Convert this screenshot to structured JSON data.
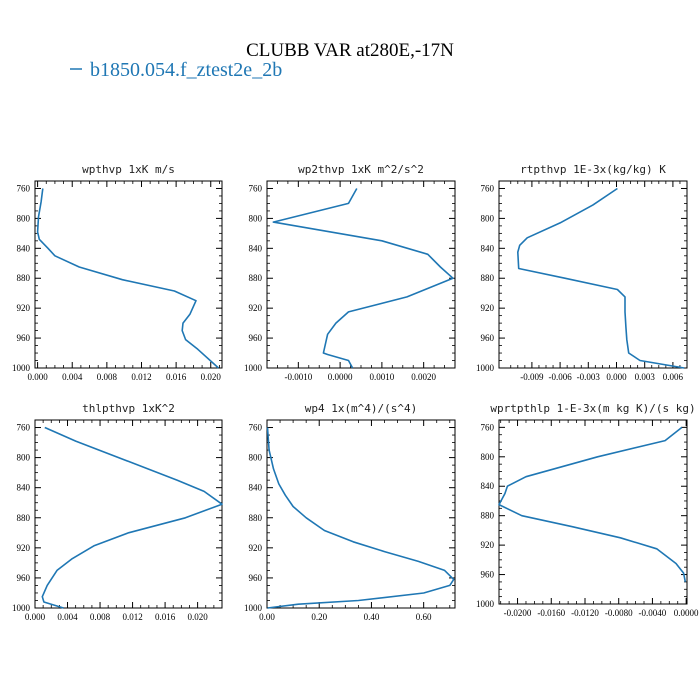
{
  "figure": {
    "title": "CLUBB VAR at280E,-17N",
    "legend_label": "b1850.054.f_ztest2e_2b",
    "line_color": "#1f77b4"
  },
  "chart_data": [
    {
      "type": "line",
      "title": "wpthvp  1xK m/s",
      "ylim": [
        1000,
        750
      ],
      "yticks": [
        760,
        800,
        840,
        880,
        920,
        960,
        1000
      ],
      "xlim": [
        -0.0003,
        0.0213
      ],
      "xticks": [
        0.0,
        0.004,
        0.008,
        0.012,
        0.016,
        0.02
      ],
      "xtick_labels": [
        "0.000",
        "0.004",
        "0.008",
        "0.012",
        "0.016",
        "0.020"
      ],
      "series": [
        {
          "x": [
            0.0006,
            0.0004,
            0.0001,
            0.0,
            0.0002,
            0.0012,
            0.002,
            0.0048,
            0.0098,
            0.0158,
            0.0183,
            0.0176,
            0.0168,
            0.0167,
            0.0171,
            0.0185,
            0.0209
          ],
          "y": [
            760,
            778,
            798,
            818,
            828,
            840,
            850,
            865,
            882,
            897,
            910,
            928,
            940,
            950,
            962,
            975,
            1000
          ]
        }
      ]
    },
    {
      "type": "line",
      "title": "wp2thvp  1xK m^2/s^2",
      "ylim": [
        1000,
        750
      ],
      "yticks": [
        760,
        800,
        840,
        880,
        920,
        960,
        1000
      ],
      "xlim": [
        -0.00175,
        0.00275
      ],
      "xticks": [
        -0.001,
        0.0,
        0.001,
        0.002
      ],
      "xtick_labels": [
        "-0.0010",
        "0.0000",
        "0.0010",
        "0.0020"
      ],
      "series": [
        {
          "x": [
            0.0004,
            0.0002,
            -0.0016,
            0.001,
            0.0021,
            0.0024,
            0.0027,
            0.0016,
            0.0002,
            -0.0001,
            -0.0003,
            -0.0004,
            -0.0003,
            0.0002,
            0.0003
          ],
          "y": [
            760,
            780,
            805,
            830,
            848,
            865,
            880,
            905,
            925,
            940,
            955,
            980,
            982,
            990,
            1000
          ]
        }
      ]
    },
    {
      "type": "line",
      "title": "rtpthvp  1E-3x(kg/kg) K",
      "ylim": [
        1000,
        750
      ],
      "yticks": [
        760,
        800,
        840,
        880,
        920,
        960,
        1000
      ],
      "xlim": [
        -0.0125,
        0.0075
      ],
      "xticks": [
        -0.009,
        -0.006,
        -0.003,
        0.0,
        0.003,
        0.006
      ],
      "xtick_labels": [
        "-0.009",
        "-0.006",
        "-0.003",
        "0.000",
        "0.003",
        "0.006"
      ],
      "series": [
        {
          "x": [
            0.0001,
            -0.0025,
            -0.006,
            -0.0095,
            -0.0103,
            -0.0105,
            -0.0104,
            -0.0055,
            0.0001,
            0.0009,
            0.0009,
            0.001,
            0.0011,
            0.0013,
            0.0025,
            0.0072
          ],
          "y": [
            760,
            782,
            806,
            826,
            836,
            845,
            867,
            880,
            895,
            905,
            925,
            945,
            962,
            980,
            990,
            1000
          ]
        }
      ]
    },
    {
      "type": "line",
      "title": "thlpthvp  1xK^2",
      "ylim": [
        1000,
        750
      ],
      "yticks": [
        760,
        800,
        840,
        880,
        920,
        960,
        1000
      ],
      "xlim": [
        0.0,
        0.023
      ],
      "xticks": [
        0.0,
        0.004,
        0.008,
        0.012,
        0.016,
        0.02
      ],
      "xtick_labels": [
        "0.000",
        "0.004",
        "0.008",
        "0.012",
        "0.016",
        "0.020"
      ],
      "series": [
        {
          "x": [
            0.0012,
            0.005,
            0.0115,
            0.0175,
            0.0208,
            0.023,
            0.0185,
            0.0115,
            0.0073,
            0.0045,
            0.0027,
            0.0015,
            0.0009,
            0.0011,
            0.0035
          ],
          "y": [
            760,
            778,
            805,
            830,
            845,
            862,
            880,
            900,
            917,
            935,
            950,
            970,
            985,
            992,
            1000
          ]
        }
      ]
    },
    {
      "type": "line",
      "title": "wp4  1x(m^4)/(s^4)",
      "ylim": [
        1000,
        750
      ],
      "yticks": [
        760,
        800,
        840,
        880,
        920,
        960,
        1000
      ],
      "xlim": [
        0.0,
        0.72
      ],
      "xticks": [
        0.0,
        0.2,
        0.4,
        0.6
      ],
      "xtick_labels": [
        "0.00",
        "0.20",
        "0.40",
        "0.60"
      ],
      "series": [
        {
          "x": [
            0.002,
            0.008,
            0.025,
            0.045,
            0.07,
            0.1,
            0.15,
            0.22,
            0.33,
            0.45,
            0.58,
            0.68,
            0.715,
            0.7,
            0.6,
            0.35,
            0.12,
            0.002
          ],
          "y": [
            760,
            790,
            815,
            835,
            850,
            865,
            880,
            897,
            912,
            925,
            938,
            950,
            962,
            970,
            980,
            990,
            995,
            1000
          ]
        }
      ]
    },
    {
      "type": "line",
      "title": "wprtpthlp  1-E-3x(m kg K)/(s kg)",
      "ylim": [
        1000,
        750
      ],
      "yticks": [
        760,
        800,
        840,
        880,
        920,
        960,
        1000
      ],
      "xlim": [
        -0.0222,
        0.0001
      ],
      "xticks": [
        -0.02,
        -0.016,
        -0.012,
        -0.008,
        -0.004,
        0.0
      ],
      "xtick_labels": [
        "-0.0200",
        "-0.0160",
        "-0.0120",
        "-0.0080",
        "-0.0040",
        "0.0000"
      ],
      "series": [
        {
          "x": [
            -0.0005,
            -0.0025,
            -0.0105,
            -0.019,
            -0.0212,
            -0.0215,
            -0.0222,
            -0.0195,
            -0.0135,
            -0.0078,
            -0.0035,
            -0.0012,
            -0.0003,
            -0.0001
          ],
          "y": [
            760,
            778,
            800,
            827,
            840,
            850,
            865,
            880,
            895,
            910,
            925,
            945,
            958,
            970
          ]
        }
      ]
    }
  ]
}
